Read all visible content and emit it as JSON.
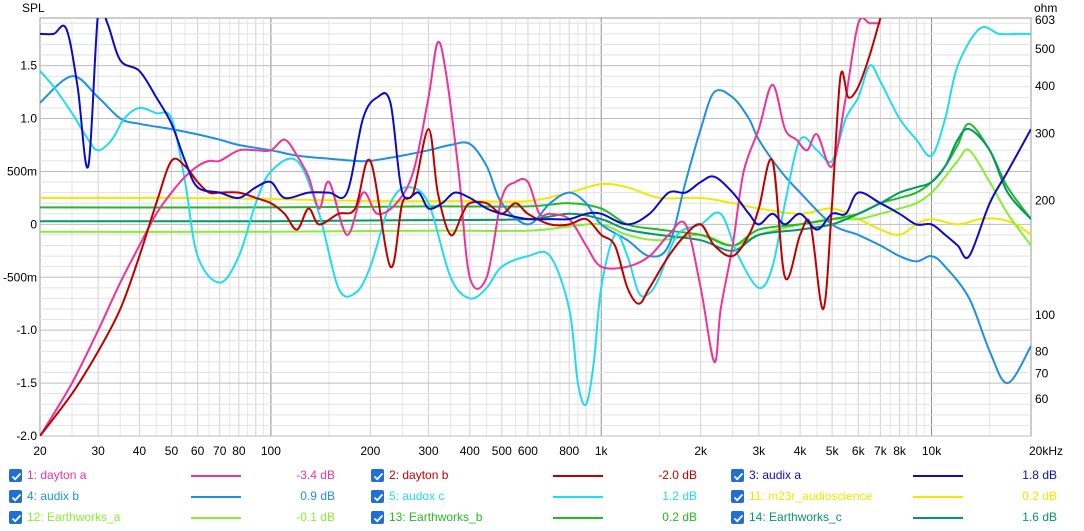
{
  "chart_data": {
    "type": "line",
    "y_axis_title": "SPL",
    "y2_axis_title": "ohm",
    "x_axis_unit": "Hz",
    "x_scale": "log",
    "xlim": [
      20,
      20000
    ],
    "ylim": [
      -2.0,
      1.95
    ],
    "y2lim": [
      48,
      603
    ],
    "y2_scale": "log",
    "grid": true,
    "x_tick_labels": [
      {
        "v": 20,
        "t": "20"
      },
      {
        "v": 30,
        "t": "30"
      },
      {
        "v": 40,
        "t": "40"
      },
      {
        "v": 50,
        "t": "50"
      },
      {
        "v": 60,
        "t": "60"
      },
      {
        "v": 70,
        "t": "70"
      },
      {
        "v": 80,
        "t": "80"
      },
      {
        "v": 100,
        "t": "100"
      },
      {
        "v": 200,
        "t": "200"
      },
      {
        "v": 300,
        "t": "300"
      },
      {
        "v": 400,
        "t": "400"
      },
      {
        "v": 500,
        "t": "500"
      },
      {
        "v": 600,
        "t": "600"
      },
      {
        "v": 800,
        "t": "800"
      },
      {
        "v": 1000,
        "t": "1k"
      },
      {
        "v": 2000,
        "t": "2k"
      },
      {
        "v": 3000,
        "t": "3k"
      },
      {
        "v": 4000,
        "t": "4k"
      },
      {
        "v": 5000,
        "t": "5k"
      },
      {
        "v": 6000,
        "t": "6k"
      },
      {
        "v": 7000,
        "t": "7k"
      },
      {
        "v": 8000,
        "t": "8k"
      },
      {
        "v": 10000,
        "t": "10k"
      },
      {
        "v": 20000,
        "t": "20kHz"
      }
    ],
    "y_tick_labels": [
      {
        "v": 1.5,
        "t": "1.5"
      },
      {
        "v": 1.0,
        "t": "1.0"
      },
      {
        "v": 0.5,
        "t": "500m"
      },
      {
        "v": 0,
        "t": "0"
      },
      {
        "v": -0.5,
        "t": "-500m"
      },
      {
        "v": -1.0,
        "t": "-1.0"
      },
      {
        "v": -1.5,
        "t": "-1.5"
      },
      {
        "v": -2.0,
        "t": "-2.0"
      }
    ],
    "y2_tick_labels": [
      {
        "v": 603,
        "t": "603"
      },
      {
        "v": 500,
        "t": "500"
      },
      {
        "v": 400,
        "t": "400"
      },
      {
        "v": 300,
        "t": "300"
      },
      {
        "v": 200,
        "t": "200"
      },
      {
        "v": 100,
        "t": "100"
      },
      {
        "v": 80,
        "t": "80"
      },
      {
        "v": 70,
        "t": "70"
      },
      {
        "v": 60,
        "t": "60"
      }
    ],
    "series": [
      {
        "name": "1: dayton a",
        "color": "#ee3399",
        "offset": "-3.4 dB",
        "x": [
          20,
          25,
          30,
          35,
          40,
          45,
          50,
          55,
          60,
          65,
          70,
          80,
          90,
          100,
          110,
          120,
          130,
          140,
          150,
          170,
          190,
          210,
          240,
          270,
          300,
          320,
          340,
          370,
          400,
          450,
          500,
          550,
          600,
          650,
          700,
          800,
          900,
          1000,
          1200,
          1400,
          1600,
          1800,
          2000,
          2200,
          2300,
          2500,
          2700,
          3000,
          3300,
          3600,
          3900,
          4200,
          4500,
          5000,
          5500,
          6000,
          6500,
          7000
        ],
        "y": [
          -2.0,
          -1.5,
          -1.0,
          -0.55,
          -0.2,
          0.1,
          0.3,
          0.45,
          0.55,
          0.6,
          0.6,
          0.7,
          0.7,
          0.7,
          0.8,
          0.65,
          0.45,
          0.15,
          0.4,
          -0.1,
          0.3,
          0.1,
          0.2,
          0.5,
          1.2,
          1.72,
          1.4,
          0.5,
          -0.5,
          -0.5,
          0.25,
          0.4,
          0.4,
          0.1,
          0.1,
          0.05,
          -0.2,
          -0.4,
          -0.4,
          -0.3,
          -0.1,
          0.0,
          -0.6,
          -1.3,
          -0.8,
          -0.2,
          0.5,
          0.9,
          1.32,
          0.9,
          0.8,
          0.7,
          0.85,
          0.55,
          1.2,
          1.9,
          1.9,
          1.9
        ]
      },
      {
        "name": "2: dayton b",
        "color": "#c00000",
        "offset": "-2.0 dB",
        "x": [
          20,
          25,
          30,
          35,
          40,
          45,
          50,
          55,
          60,
          65,
          70,
          80,
          90,
          100,
          110,
          120,
          130,
          140,
          160,
          180,
          200,
          230,
          250,
          270,
          300,
          320,
          350,
          380,
          400,
          450,
          500,
          550,
          600,
          700,
          800,
          900,
          1000,
          1100,
          1200,
          1300,
          1400,
          1600,
          1800,
          2000,
          2200,
          2500,
          2800,
          3000,
          3300,
          3600,
          4000,
          4300,
          4700,
          5000,
          5300,
          5600,
          6000,
          6500,
          7000
        ],
        "y": [
          -2.0,
          -1.6,
          -1.2,
          -0.8,
          -0.3,
          0.2,
          0.6,
          0.55,
          0.4,
          0.3,
          0.3,
          0.3,
          0.25,
          0.2,
          0.1,
          -0.05,
          0.15,
          0.0,
          0.1,
          0.15,
          0.6,
          -0.4,
          0.2,
          0.3,
          0.9,
          0.3,
          -0.1,
          0.1,
          0.2,
          0.2,
          0.1,
          0.2,
          0.1,
          0.0,
          0.0,
          0.05,
          -0.1,
          -0.2,
          -0.6,
          -0.75,
          -0.6,
          -0.3,
          -0.1,
          0.0,
          -0.2,
          -0.3,
          -0.1,
          0.15,
          0.6,
          -0.5,
          -0.1,
          0.0,
          -0.8,
          0.2,
          1.4,
          1.2,
          1.3,
          1.6,
          1.95
        ]
      },
      {
        "name": "3: audix a",
        "color": "#0b0bc8",
        "offset": "1.8 dB",
        "x": [
          20,
          22,
          24,
          26,
          28,
          30,
          32,
          35,
          40,
          45,
          50,
          55,
          60,
          70,
          80,
          90,
          100,
          110,
          130,
          150,
          170,
          190,
          210,
          230,
          250,
          280,
          300,
          330,
          360,
          400,
          450,
          500,
          600,
          700,
          800,
          900,
          1000,
          1200,
          1400,
          1600,
          1800,
          2000,
          2200,
          2500,
          2800,
          3000,
          3300,
          3600,
          4000,
          4500,
          5000,
          5500,
          6000,
          7000,
          8000,
          9000,
          10000,
          11000,
          12000,
          13000,
          15000,
          17000,
          20000
        ],
        "y": [
          1.8,
          1.8,
          1.85,
          1.3,
          0.55,
          2.0,
          1.9,
          1.55,
          1.45,
          1.2,
          0.95,
          0.6,
          0.35,
          0.3,
          0.25,
          0.35,
          0.4,
          0.25,
          0.3,
          0.3,
          0.3,
          1.0,
          1.2,
          1.15,
          0.3,
          0.3,
          0.15,
          0.2,
          0.3,
          0.25,
          0.15,
          0.1,
          0.05,
          0.05,
          0.05,
          0.1,
          0.1,
          0.0,
          0.1,
          0.3,
          0.3,
          0.4,
          0.45,
          0.3,
          0.1,
          0.0,
          0.1,
          0.0,
          0.1,
          -0.05,
          0.1,
          0.1,
          0.3,
          0.2,
          0.1,
          0.0,
          0.0,
          -0.1,
          -0.2,
          -0.3,
          0.2,
          0.5,
          0.9
        ]
      },
      {
        "name": "4: audix b",
        "color": "#1e90e6",
        "offset": "0.9 dB",
        "x": [
          20,
          25,
          30,
          35,
          40,
          50,
          60,
          70,
          80,
          100,
          120,
          150,
          180,
          200,
          250,
          300,
          350,
          400,
          450,
          500,
          600,
          700,
          800,
          900,
          1000,
          1200,
          1400,
          1600,
          1800,
          2000,
          2200,
          2500,
          2800,
          3000,
          3500,
          4000,
          5000,
          6000,
          7000,
          8000,
          9000,
          10000,
          11000,
          13000,
          15000,
          17000,
          20000
        ],
        "y": [
          1.15,
          1.4,
          1.2,
          1.0,
          0.95,
          0.9,
          0.85,
          0.8,
          0.75,
          0.7,
          0.65,
          0.62,
          0.6,
          0.6,
          0.65,
          0.7,
          0.75,
          0.76,
          0.55,
          0.2,
          0.0,
          0.2,
          0.3,
          0.2,
          0.0,
          -0.15,
          -0.3,
          -0.2,
          0.4,
          0.9,
          1.25,
          1.2,
          1.0,
          0.8,
          0.5,
          0.3,
          0.0,
          -0.1,
          -0.2,
          -0.3,
          -0.35,
          -0.3,
          -0.4,
          -0.7,
          -1.2,
          -1.5,
          -1.15
        ]
      },
      {
        "name": "5: audox c",
        "color": "#22dbee",
        "offset": "1.2 dB",
        "x": [
          20,
          22,
          25,
          28,
          30,
          33,
          36,
          40,
          45,
          50,
          55,
          60,
          70,
          80,
          90,
          100,
          120,
          140,
          160,
          180,
          200,
          230,
          260,
          300,
          350,
          400,
          450,
          500,
          600,
          700,
          800,
          850,
          900,
          950,
          1000,
          1100,
          1200,
          1300,
          1400,
          1500,
          1700,
          2000,
          2300,
          2600,
          3000,
          3300,
          3600,
          4000,
          4500,
          5000,
          5500,
          6000,
          6500,
          7000,
          8000,
          9000,
          10000,
          11000,
          12000,
          14000,
          16000,
          18000,
          20000
        ],
        "y": [
          1.45,
          1.3,
          1.05,
          0.8,
          0.7,
          0.8,
          1.0,
          1.1,
          1.05,
          1.0,
          0.4,
          -0.3,
          -0.55,
          -0.3,
          0.2,
          0.5,
          0.6,
          0.1,
          -0.6,
          -0.65,
          -0.4,
          0.2,
          0.35,
          0.2,
          -0.5,
          -0.7,
          -0.6,
          -0.4,
          -0.3,
          -0.3,
          -0.8,
          -1.5,
          -1.7,
          -1.3,
          -0.6,
          -0.1,
          -0.3,
          -0.65,
          -0.65,
          -0.5,
          -0.1,
          0.0,
          0.1,
          -0.3,
          -0.6,
          -0.4,
          0.2,
          0.8,
          0.7,
          0.6,
          1.0,
          1.2,
          1.5,
          1.35,
          1.0,
          0.8,
          0.65,
          1.0,
          1.5,
          1.85,
          1.8,
          1.8,
          1.8
        ]
      },
      {
        "name": "11: m23r_audioscience",
        "color": "#f0e800",
        "offset": "0.2 dB",
        "x": [
          20,
          50,
          100,
          200,
          400,
          600,
          800,
          1000,
          1200,
          1500,
          2000,
          2500,
          3000,
          4000,
          5000,
          6000,
          7000,
          8000,
          9000,
          10000,
          12000,
          14000,
          16000,
          18000,
          20000
        ],
        "y": [
          0.25,
          0.25,
          0.24,
          0.22,
          0.22,
          0.22,
          0.3,
          0.38,
          0.35,
          0.25,
          0.25,
          0.2,
          0.15,
          0.1,
          0.15,
          0.05,
          -0.05,
          -0.1,
          0.0,
          0.05,
          0.0,
          0.05,
          0.05,
          0.0,
          -0.1
        ]
      },
      {
        "name": "12: Earthworks_a",
        "color": "#88ee33",
        "offset": "-0.1 dB",
        "x": [
          20,
          100,
          300,
          600,
          800,
          1000,
          1200,
          1500,
          2000,
          2500,
          3000,
          4000,
          5000,
          6000,
          7000,
          8000,
          9000,
          10000,
          11000,
          12000,
          13000,
          15000,
          17000,
          20000
        ],
        "y": [
          -0.07,
          -0.07,
          -0.06,
          -0.06,
          -0.02,
          0.0,
          -0.1,
          -0.15,
          -0.1,
          -0.2,
          -0.1,
          0.0,
          0.05,
          0.05,
          0.1,
          0.15,
          0.2,
          0.3,
          0.45,
          0.6,
          0.7,
          0.4,
          0.1,
          -0.2
        ]
      },
      {
        "name": "13: Earthworks_b",
        "color": "#22bb22",
        "offset": "0.2 dB",
        "x": [
          20,
          100,
          300,
          600,
          800,
          1000,
          1200,
          1500,
          2000,
          2500,
          3000,
          4000,
          5000,
          6000,
          7000,
          8000,
          9000,
          10000,
          11000,
          12000,
          13000,
          15000,
          17000,
          20000
        ],
        "y": [
          0.16,
          0.16,
          0.17,
          0.17,
          0.2,
          0.15,
          0.0,
          -0.05,
          -0.1,
          -0.2,
          -0.05,
          0.0,
          0.05,
          0.1,
          0.2,
          0.25,
          0.3,
          0.4,
          0.55,
          0.75,
          0.95,
          0.7,
          0.35,
          0.05
        ]
      },
      {
        "name": "14: Earthworks_c",
        "color": "#009966",
        "offset": "1.6 dB",
        "x": [
          20,
          100,
          300,
          600,
          800,
          1000,
          1200,
          1500,
          2000,
          2500,
          3000,
          4000,
          5000,
          6000,
          7000,
          8000,
          9000,
          10000,
          11000,
          12000,
          13000,
          15000,
          17000,
          20000
        ],
        "y": [
          0.03,
          0.03,
          0.04,
          0.05,
          0.1,
          0.05,
          -0.05,
          -0.1,
          -0.15,
          -0.25,
          -0.1,
          -0.05,
          0.0,
          0.1,
          0.2,
          0.3,
          0.35,
          0.4,
          0.55,
          0.8,
          0.9,
          0.7,
          0.3,
          0.05
        ]
      }
    ]
  }
}
